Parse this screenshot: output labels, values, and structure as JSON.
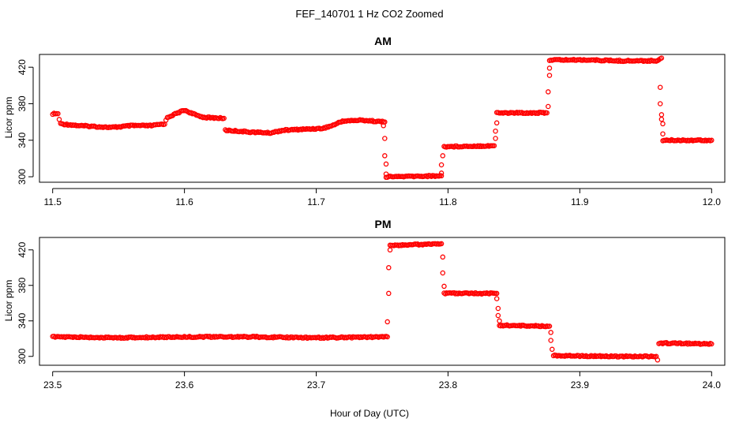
{
  "figure": {
    "title": "FEF_140701  1 Hz CO2 Zoomed",
    "xlabel": "Hour of Day (UTC)",
    "point_color": "#ff0000"
  },
  "chart_data": [
    {
      "type": "scatter",
      "title": "AM",
      "ylabel": "Licor ppm",
      "xlim": [
        11.49,
        12.01
      ],
      "ylim": [
        294,
        434
      ],
      "xticks": [
        11.5,
        11.6,
        11.7,
        11.8,
        11.9,
        12.0
      ],
      "xtick_labels": [
        "11.5",
        "11.6",
        "11.7",
        "11.8",
        "11.9",
        "12.0"
      ],
      "yticks": [
        300,
        340,
        380,
        420
      ],
      "ytick_labels": [
        "300",
        "340",
        "380",
        "420"
      ],
      "grid": false,
      "marker": "open-circle",
      "series": [
        {
          "segments": [
            [
              [
                11.5,
                369
              ],
              [
                11.504,
                369
              ],
              [
                11.505,
                363
              ],
              [
                11.506,
                358
              ],
              [
                11.52,
                356
              ],
              [
                11.545,
                354
              ],
              [
                11.56,
                356
              ],
              [
                11.575,
                356
              ],
              [
                11.585,
                358
              ],
              [
                11.587,
                365
              ],
              [
                11.595,
                370
              ],
              [
                11.6,
                373
              ],
              [
                11.608,
                368
              ],
              [
                11.615,
                365
              ],
              [
                11.63,
                364
              ]
            ],
            [
              [
                11.631,
                351
              ],
              [
                11.65,
                349
              ],
              [
                11.665,
                348
              ],
              [
                11.675,
                351
              ],
              [
                11.69,
                352
              ],
              [
                11.705,
                353
              ],
              [
                11.712,
                356
              ],
              [
                11.72,
                361
              ],
              [
                11.735,
                362
              ],
              [
                11.752,
                360
              ]
            ],
            [
              [
                11.753,
                300
              ],
              [
                11.795,
                301
              ]
            ],
            [
              [
                11.797,
                333
              ],
              [
                11.835,
                334
              ]
            ],
            [
              [
                11.837,
                370
              ],
              [
                11.875,
                370
              ]
            ],
            [
              [
                11.877,
                428
              ],
              [
                11.905,
                428
              ],
              [
                11.93,
                427
              ],
              [
                11.958,
                427
              ],
              [
                11.962,
                430
              ]
            ],
            [
              [
                11.963,
                340
              ],
              [
                12.0,
                340
              ]
            ]
          ],
          "transition_points": [
            [
              11.751,
              356
            ],
            [
              11.752,
              342
            ],
            [
              11.752,
              323
            ],
            [
              11.753,
              314
            ],
            [
              11.753,
              303
            ],
            [
              11.795,
              304
            ],
            [
              11.795,
              313
            ],
            [
              11.796,
              323
            ],
            [
              11.836,
              342
            ],
            [
              11.836,
              350
            ],
            [
              11.837,
              359
            ],
            [
              11.876,
              377
            ],
            [
              11.876,
              393
            ],
            [
              11.877,
              411
            ],
            [
              11.877,
              419
            ],
            [
              11.961,
              398
            ],
            [
              11.961,
              380
            ],
            [
              11.962,
              368
            ],
            [
              11.962,
              363
            ],
            [
              11.963,
              358
            ],
            [
              11.963,
              347
            ]
          ]
        }
      ]
    },
    {
      "type": "scatter",
      "title": "PM",
      "ylabel": "Licor ppm",
      "xlim": [
        23.49,
        24.01
      ],
      "ylim": [
        290,
        434
      ],
      "xticks": [
        23.5,
        23.6,
        23.7,
        23.8,
        23.9,
        24.0
      ],
      "xtick_labels": [
        "23.5",
        "23.6",
        "23.7",
        "23.8",
        "23.9",
        "24.0"
      ],
      "yticks": [
        300,
        340,
        380,
        420
      ],
      "ytick_labels": [
        "300",
        "340",
        "380",
        "420"
      ],
      "grid": false,
      "marker": "open-circle",
      "series": [
        {
          "segments": [
            [
              [
                23.5,
                322
              ],
              [
                23.55,
                321
              ],
              [
                23.6,
                322
              ],
              [
                23.65,
                322
              ],
              [
                23.7,
                321
              ],
              [
                23.754,
                322
              ]
            ],
            [
              [
                23.756,
                425
              ],
              [
                23.795,
                427
              ]
            ],
            [
              [
                23.797,
                371
              ],
              [
                23.837,
                371
              ]
            ],
            [
              [
                23.839,
                335
              ],
              [
                23.877,
                334
              ]
            ],
            [
              [
                23.88,
                301
              ],
              [
                23.92,
                300
              ],
              [
                23.958,
                300
              ]
            ],
            [
              [
                23.96,
                315
              ],
              [
                24.0,
                314
              ]
            ]
          ],
          "transition_points": [
            [
              23.754,
              339
            ],
            [
              23.755,
              371
            ],
            [
              23.755,
              400
            ],
            [
              23.756,
              420
            ],
            [
              23.796,
              412
            ],
            [
              23.796,
              394
            ],
            [
              23.797,
              379
            ],
            [
              23.837,
              365
            ],
            [
              23.838,
              354
            ],
            [
              23.838,
              346
            ],
            [
              23.839,
              340
            ],
            [
              23.878,
              327
            ],
            [
              23.878,
              318
            ],
            [
              23.879,
              308
            ],
            [
              23.959,
              296
            ]
          ]
        }
      ]
    }
  ]
}
